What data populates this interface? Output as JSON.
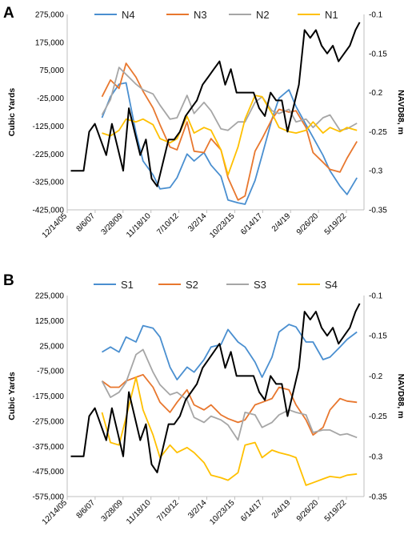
{
  "chart_data": [
    {
      "type": "line",
      "panel_label": "A",
      "ylabel": "Cubic Yards",
      "y2label": "NAVD88, m",
      "ylim": [
        -425000,
        275000
      ],
      "y2lim": [
        -0.35,
        -0.1
      ],
      "yticks": [
        "275,000",
        "175,000",
        "75,000",
        "-25,000",
        "-125,000",
        "-225,000",
        "-325,000",
        "-425,000"
      ],
      "y2ticks": [
        "-0.1",
        "-0.15",
        "-0.2",
        "-0.25",
        "-0.3",
        "-0.35"
      ],
      "xlim": [
        "2005-12-14",
        "2023-06-01"
      ],
      "xticks": [
        "12/14/05",
        "8/6/07",
        "3/28/09",
        "11/18/10",
        "7/10/12",
        "3/2/14",
        "10/23/15",
        "6/14/17",
        "2/4/19",
        "9/26/20",
        "5/19/22"
      ],
      "series": [
        {
          "name": "N4",
          "color": "#4a8fd0",
          "x": [
            "2008-01-01",
            "2008-07-01",
            "2009-01-01",
            "2009-06-01",
            "2010-01-01",
            "2010-06-01",
            "2011-01-01",
            "2011-06-01",
            "2012-01-01",
            "2012-06-01",
            "2013-01-01",
            "2013-06-01",
            "2014-01-01",
            "2014-06-01",
            "2015-01-01",
            "2015-06-01",
            "2016-01-01",
            "2016-06-01",
            "2017-01-01",
            "2017-06-01",
            "2018-01-01",
            "2018-06-01",
            "2019-01-01",
            "2019-06-01",
            "2020-01-01",
            "2020-06-01",
            "2021-01-01",
            "2021-06-01",
            "2022-01-01",
            "2022-06-01",
            "2023-01-01"
          ],
          "values": [
            -95000,
            -20000,
            25000,
            30000,
            -150000,
            -250000,
            -300000,
            -350000,
            -345000,
            -310000,
            -225000,
            -250000,
            -220000,
            -265000,
            -305000,
            -390000,
            -400000,
            -405000,
            -320000,
            -230000,
            -100000,
            -25000,
            5000,
            -55000,
            -120000,
            -165000,
            -230000,
            -285000,
            -340000,
            -370000,
            -310000
          ]
        },
        {
          "name": "N3",
          "color": "#e8772e",
          "x": [
            "2008-01-01",
            "2008-07-01",
            "2009-01-01",
            "2009-06-01",
            "2010-01-01",
            "2010-06-01",
            "2011-01-01",
            "2011-06-01",
            "2012-01-01",
            "2012-06-01",
            "2013-01-01",
            "2013-06-01",
            "2014-01-01",
            "2014-06-01",
            "2015-01-01",
            "2015-06-01",
            "2016-01-01",
            "2016-06-01",
            "2017-01-01",
            "2017-06-01",
            "2018-01-01",
            "2018-06-01",
            "2019-01-01",
            "2019-06-01",
            "2020-01-01",
            "2020-06-01",
            "2021-01-01",
            "2021-06-01",
            "2022-01-01",
            "2022-06-01",
            "2023-01-01"
          ],
          "values": [
            -20000,
            40000,
            10000,
            100000,
            50000,
            0,
            -60000,
            -120000,
            -200000,
            -210000,
            -110000,
            -215000,
            -220000,
            -170000,
            -210000,
            -310000,
            -390000,
            -375000,
            -215000,
            -170000,
            -100000,
            -65000,
            -75000,
            -70000,
            -130000,
            -220000,
            -255000,
            -280000,
            -290000,
            -240000,
            -180000
          ]
        },
        {
          "name": "N2",
          "color": "#a6a6a6",
          "x": [
            "2008-01-01",
            "2008-07-01",
            "2009-01-01",
            "2009-06-01",
            "2010-01-01",
            "2010-06-01",
            "2011-01-01",
            "2011-06-01",
            "2012-01-01",
            "2012-06-01",
            "2013-01-01",
            "2013-06-01",
            "2014-01-01",
            "2014-06-01",
            "2015-01-01",
            "2015-06-01",
            "2016-01-01",
            "2016-06-01",
            "2017-01-01",
            "2017-06-01",
            "2018-01-01",
            "2018-06-01",
            "2019-01-01",
            "2019-06-01",
            "2020-01-01",
            "2020-06-01",
            "2021-01-01",
            "2021-06-01",
            "2022-01-01",
            "2022-06-01",
            "2023-01-01"
          ],
          "values": [
            -85000,
            -30000,
            85000,
            60000,
            25000,
            5000,
            -10000,
            -50000,
            -100000,
            -95000,
            -15000,
            -80000,
            -40000,
            -70000,
            -135000,
            -140000,
            -110000,
            -110000,
            -40000,
            -20000,
            -70000,
            -80000,
            -65000,
            -110000,
            -100000,
            -130000,
            -95000,
            -85000,
            -140000,
            -135000,
            -115000
          ]
        },
        {
          "name": "N1",
          "color": "#ffc000",
          "x": [
            "2008-01-01",
            "2008-07-01",
            "2009-01-01",
            "2009-06-01",
            "2010-01-01",
            "2010-06-01",
            "2011-01-01",
            "2011-06-01",
            "2012-01-01",
            "2012-06-01",
            "2013-01-01",
            "2013-06-01",
            "2014-01-01",
            "2014-06-01",
            "2015-01-01",
            "2015-06-01",
            "2016-01-01",
            "2016-06-01",
            "2017-01-01",
            "2017-06-01",
            "2018-01-01",
            "2018-06-01",
            "2019-01-01",
            "2019-06-01",
            "2020-01-01",
            "2020-06-01",
            "2021-01-01",
            "2021-06-01",
            "2022-01-01",
            "2022-06-01",
            "2023-01-01"
          ],
          "values": [
            -150000,
            -160000,
            -140000,
            -100000,
            -110000,
            -100000,
            -120000,
            -170000,
            -185000,
            -170000,
            -90000,
            -150000,
            -130000,
            -140000,
            -210000,
            -300000,
            -200000,
            -100000,
            -15000,
            -20000,
            -80000,
            -130000,
            -145000,
            -150000,
            -140000,
            -110000,
            -150000,
            -130000,
            -145000,
            -130000,
            -140000
          ]
        },
        {
          "name": "NAVD88",
          "axis": "right",
          "color": "#000000",
          "x": [
            "2006-03-01",
            "2006-08-01",
            "2006-12-01",
            "2007-04-01",
            "2007-08-01",
            "2007-12-01",
            "2008-04-01",
            "2008-08-01",
            "2008-12-01",
            "2009-04-01",
            "2009-08-01",
            "2009-12-01",
            "2010-04-01",
            "2010-08-01",
            "2010-12-01",
            "2011-04-01",
            "2011-08-01",
            "2011-12-01",
            "2012-04-01",
            "2012-08-01",
            "2012-12-01",
            "2013-04-01",
            "2013-08-01",
            "2013-12-01",
            "2014-04-01",
            "2014-08-01",
            "2014-12-01",
            "2015-04-01",
            "2015-08-01",
            "2015-12-01",
            "2016-04-01",
            "2016-08-01",
            "2016-12-01",
            "2017-04-01",
            "2017-08-01",
            "2017-12-01",
            "2018-04-01",
            "2018-08-01",
            "2018-12-01",
            "2019-04-01",
            "2019-08-01",
            "2019-12-01",
            "2020-04-01",
            "2020-08-01",
            "2020-12-01",
            "2021-04-01",
            "2021-08-01",
            "2021-12-01",
            "2022-04-01",
            "2022-08-01",
            "2022-12-01",
            "2023-03-01"
          ],
          "values": [
            -0.3,
            -0.3,
            -0.3,
            -0.25,
            -0.24,
            -0.26,
            -0.28,
            -0.24,
            -0.27,
            -0.3,
            -0.22,
            -0.25,
            -0.28,
            -0.26,
            -0.31,
            -0.32,
            -0.29,
            -0.26,
            -0.26,
            -0.25,
            -0.23,
            -0.22,
            -0.21,
            -0.19,
            -0.18,
            -0.17,
            -0.16,
            -0.19,
            -0.17,
            -0.2,
            -0.2,
            -0.2,
            -0.2,
            -0.22,
            -0.23,
            -0.2,
            -0.21,
            -0.21,
            -0.25,
            -0.22,
            -0.19,
            -0.12,
            -0.13,
            -0.12,
            -0.14,
            -0.15,
            -0.14,
            -0.16,
            -0.15,
            -0.14,
            -0.12,
            -0.11
          ]
        }
      ]
    },
    {
      "type": "line",
      "panel_label": "B",
      "ylabel": "Cubic Yards",
      "y2label": "NAVD88, m",
      "ylim": [
        -575000,
        225000
      ],
      "y2lim": [
        -0.35,
        -0.1
      ],
      "yticks": [
        "225,000",
        "125,000",
        "25,000",
        "-75,000",
        "-175,000",
        "-275,000",
        "-375,000",
        "-475,000",
        "-575,000"
      ],
      "y2ticks": [
        "-0.1",
        "-0.15",
        "-0.2",
        "-0.25",
        "-0.3",
        "-0.35"
      ],
      "xlim": [
        "2005-12-14",
        "2023-06-01"
      ],
      "xticks": [
        "12/14/05",
        "8/6/07",
        "3/28/09",
        "11/18/10",
        "7/10/12",
        "3/2/14",
        "10/23/15",
        "6/14/17",
        "2/4/19",
        "9/26/20",
        "5/19/22"
      ],
      "series": [
        {
          "name": "S1",
          "color": "#4a8fd0",
          "x": [
            "2008-01-01",
            "2008-07-01",
            "2009-01-01",
            "2009-06-01",
            "2010-01-01",
            "2010-06-01",
            "2011-01-01",
            "2011-06-01",
            "2012-01-01",
            "2012-06-01",
            "2013-01-01",
            "2013-06-01",
            "2014-01-01",
            "2014-06-01",
            "2015-01-01",
            "2015-06-01",
            "2016-01-01",
            "2016-06-01",
            "2017-01-01",
            "2017-06-01",
            "2018-01-01",
            "2018-06-01",
            "2019-01-01",
            "2019-06-01",
            "2020-01-01",
            "2020-06-01",
            "2021-01-01",
            "2021-06-01",
            "2022-01-01",
            "2022-06-01",
            "2023-01-01"
          ],
          "values": [
            0,
            20000,
            0,
            60000,
            40000,
            105000,
            95000,
            60000,
            -60000,
            -110000,
            -60000,
            -80000,
            -30000,
            20000,
            30000,
            90000,
            40000,
            20000,
            -40000,
            -100000,
            -20000,
            80000,
            110000,
            100000,
            40000,
            40000,
            -30000,
            -20000,
            20000,
            50000,
            80000
          ]
        },
        {
          "name": "S2",
          "color": "#e8772e",
          "x": [
            "2008-01-01",
            "2008-07-01",
            "2009-01-01",
            "2009-06-01",
            "2010-01-01",
            "2010-06-01",
            "2011-01-01",
            "2011-06-01",
            "2012-01-01",
            "2012-06-01",
            "2013-01-01",
            "2013-06-01",
            "2014-01-01",
            "2014-06-01",
            "2015-01-01",
            "2015-06-01",
            "2016-01-01",
            "2016-06-01",
            "2017-01-01",
            "2017-06-01",
            "2018-01-01",
            "2018-06-01",
            "2019-01-01",
            "2019-06-01",
            "2020-01-01",
            "2020-06-01",
            "2021-01-01",
            "2021-06-01",
            "2022-01-01",
            "2022-06-01",
            "2023-01-01"
          ],
          "values": [
            -115000,
            -140000,
            -140000,
            -115000,
            -100000,
            -90000,
            -140000,
            -200000,
            -240000,
            -200000,
            -150000,
            -210000,
            -230000,
            -210000,
            -250000,
            -265000,
            -280000,
            -270000,
            -210000,
            -200000,
            -185000,
            -140000,
            -150000,
            -210000,
            -270000,
            -330000,
            -300000,
            -230000,
            -185000,
            -195000,
            -200000
          ]
        },
        {
          "name": "S3",
          "color": "#a6a6a6",
          "x": [
            "2008-01-01",
            "2008-07-01",
            "2009-01-01",
            "2009-06-01",
            "2010-01-01",
            "2010-06-01",
            "2011-01-01",
            "2011-06-01",
            "2012-01-01",
            "2012-06-01",
            "2013-01-01",
            "2013-06-01",
            "2014-01-01",
            "2014-06-01",
            "2015-01-01",
            "2015-06-01",
            "2016-01-01",
            "2016-06-01",
            "2017-01-01",
            "2017-06-01",
            "2018-01-01",
            "2018-06-01",
            "2019-01-01",
            "2019-06-01",
            "2020-01-01",
            "2020-06-01",
            "2021-01-01",
            "2021-06-01",
            "2022-01-01",
            "2022-06-01",
            "2023-01-01"
          ],
          "values": [
            -115000,
            -180000,
            -160000,
            -120000,
            -10000,
            10000,
            -80000,
            -130000,
            -170000,
            -160000,
            -190000,
            -260000,
            -280000,
            -255000,
            -270000,
            -290000,
            -350000,
            -240000,
            -250000,
            -300000,
            -280000,
            -250000,
            -230000,
            -240000,
            -250000,
            -320000,
            -310000,
            -310000,
            -330000,
            -325000,
            -340000
          ]
        },
        {
          "name": "S4",
          "color": "#ffc000",
          "x": [
            "2008-01-01",
            "2008-07-01",
            "2009-01-01",
            "2009-06-01",
            "2010-01-01",
            "2010-06-01",
            "2011-01-01",
            "2011-06-01",
            "2012-01-01",
            "2012-06-01",
            "2013-01-01",
            "2013-06-01",
            "2014-01-01",
            "2014-06-01",
            "2015-01-01",
            "2015-06-01",
            "2016-01-01",
            "2016-06-01",
            "2017-01-01",
            "2017-06-01",
            "2018-01-01",
            "2018-06-01",
            "2019-01-01",
            "2019-06-01",
            "2020-01-01",
            "2020-06-01",
            "2021-01-01",
            "2021-06-01",
            "2022-01-01",
            "2022-06-01",
            "2023-01-01"
          ],
          "values": [
            -240000,
            -360000,
            -370000,
            -260000,
            -100000,
            -230000,
            -330000,
            -420000,
            -370000,
            -400000,
            -380000,
            -400000,
            -440000,
            -490000,
            -500000,
            -510000,
            -480000,
            -370000,
            -360000,
            -420000,
            -390000,
            -400000,
            -410000,
            -420000,
            -530000,
            -520000,
            -505000,
            -495000,
            -500000,
            -490000,
            -485000
          ]
        },
        {
          "name": "NAVD88",
          "axis": "right",
          "color": "#000000",
          "x": [
            "2006-03-01",
            "2006-08-01",
            "2006-12-01",
            "2007-04-01",
            "2007-08-01",
            "2007-12-01",
            "2008-04-01",
            "2008-08-01",
            "2008-12-01",
            "2009-04-01",
            "2009-08-01",
            "2009-12-01",
            "2010-04-01",
            "2010-08-01",
            "2010-12-01",
            "2011-04-01",
            "2011-08-01",
            "2011-12-01",
            "2012-04-01",
            "2012-08-01",
            "2012-12-01",
            "2013-04-01",
            "2013-08-01",
            "2013-12-01",
            "2014-04-01",
            "2014-08-01",
            "2014-12-01",
            "2015-04-01",
            "2015-08-01",
            "2015-12-01",
            "2016-04-01",
            "2016-08-01",
            "2016-12-01",
            "2017-04-01",
            "2017-08-01",
            "2017-12-01",
            "2018-04-01",
            "2018-08-01",
            "2018-12-01",
            "2019-04-01",
            "2019-08-01",
            "2019-12-01",
            "2020-04-01",
            "2020-08-01",
            "2020-12-01",
            "2021-04-01",
            "2021-08-01",
            "2021-12-01",
            "2022-04-01",
            "2022-08-01",
            "2022-12-01",
            "2023-03-01"
          ],
          "values": [
            -0.3,
            -0.3,
            -0.3,
            -0.25,
            -0.24,
            -0.26,
            -0.28,
            -0.24,
            -0.27,
            -0.3,
            -0.22,
            -0.25,
            -0.28,
            -0.26,
            -0.31,
            -0.32,
            -0.29,
            -0.26,
            -0.26,
            -0.25,
            -0.23,
            -0.22,
            -0.21,
            -0.19,
            -0.18,
            -0.17,
            -0.16,
            -0.19,
            -0.17,
            -0.2,
            -0.2,
            -0.2,
            -0.2,
            -0.22,
            -0.23,
            -0.2,
            -0.21,
            -0.21,
            -0.25,
            -0.22,
            -0.19,
            -0.12,
            -0.13,
            -0.12,
            -0.14,
            -0.15,
            -0.14,
            -0.16,
            -0.15,
            -0.14,
            -0.12,
            -0.11
          ]
        }
      ]
    }
  ]
}
